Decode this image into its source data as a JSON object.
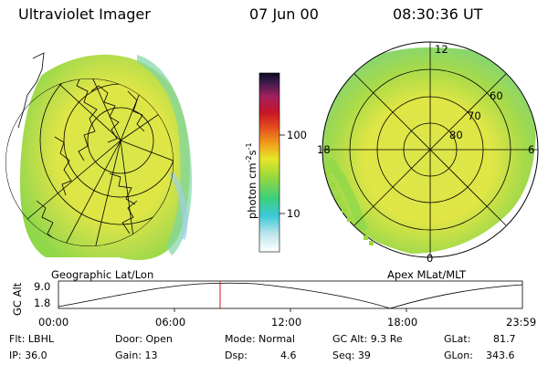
{
  "header": {
    "title": "Ultraviolet Imager",
    "date": "07 Jun 00",
    "time": "08:30:36 UT"
  },
  "colors": {
    "aurora_yellow": "#dfe646",
    "aurora_green": "#8fd84a",
    "cursor": "#d21a1a"
  },
  "left_panel": {
    "label": "Geographic Lat/Lon",
    "overlay": "coastline-map"
  },
  "colorbar": {
    "unit": "photon cm",
    "unit_sup1": "-2",
    "unit_mid": "s",
    "unit_sup2": "-1",
    "ticks": [
      "100",
      "10"
    ]
  },
  "right_panel": {
    "label": "Apex MLat/MLT",
    "mlt_labels": [
      "12",
      "18",
      "6",
      "0"
    ],
    "mlat_labels": [
      "60",
      "70",
      "80"
    ]
  },
  "timeline": {
    "axis_label": "GC Alt",
    "y_ticks": [
      "9.0",
      "1.8"
    ],
    "x_ticks": [
      "00:00",
      "06:00",
      "12:00",
      "18:00",
      "23:59"
    ]
  },
  "status": {
    "filter": "Flt: LBHL",
    "ip": "IP: 36.0",
    "door": "Door: Open",
    "gain": "Gain: 13",
    "mode": "Mode: Normal",
    "dsp_label": "Dsp:",
    "dsp_value": "4.6",
    "gc_alt": "GC Alt: 9.3 Re",
    "seq": "Seq: 39",
    "glat_label": "GLat:",
    "glat_value": "81.7",
    "glon_label": "GLon:",
    "glon_value": "343.6"
  }
}
